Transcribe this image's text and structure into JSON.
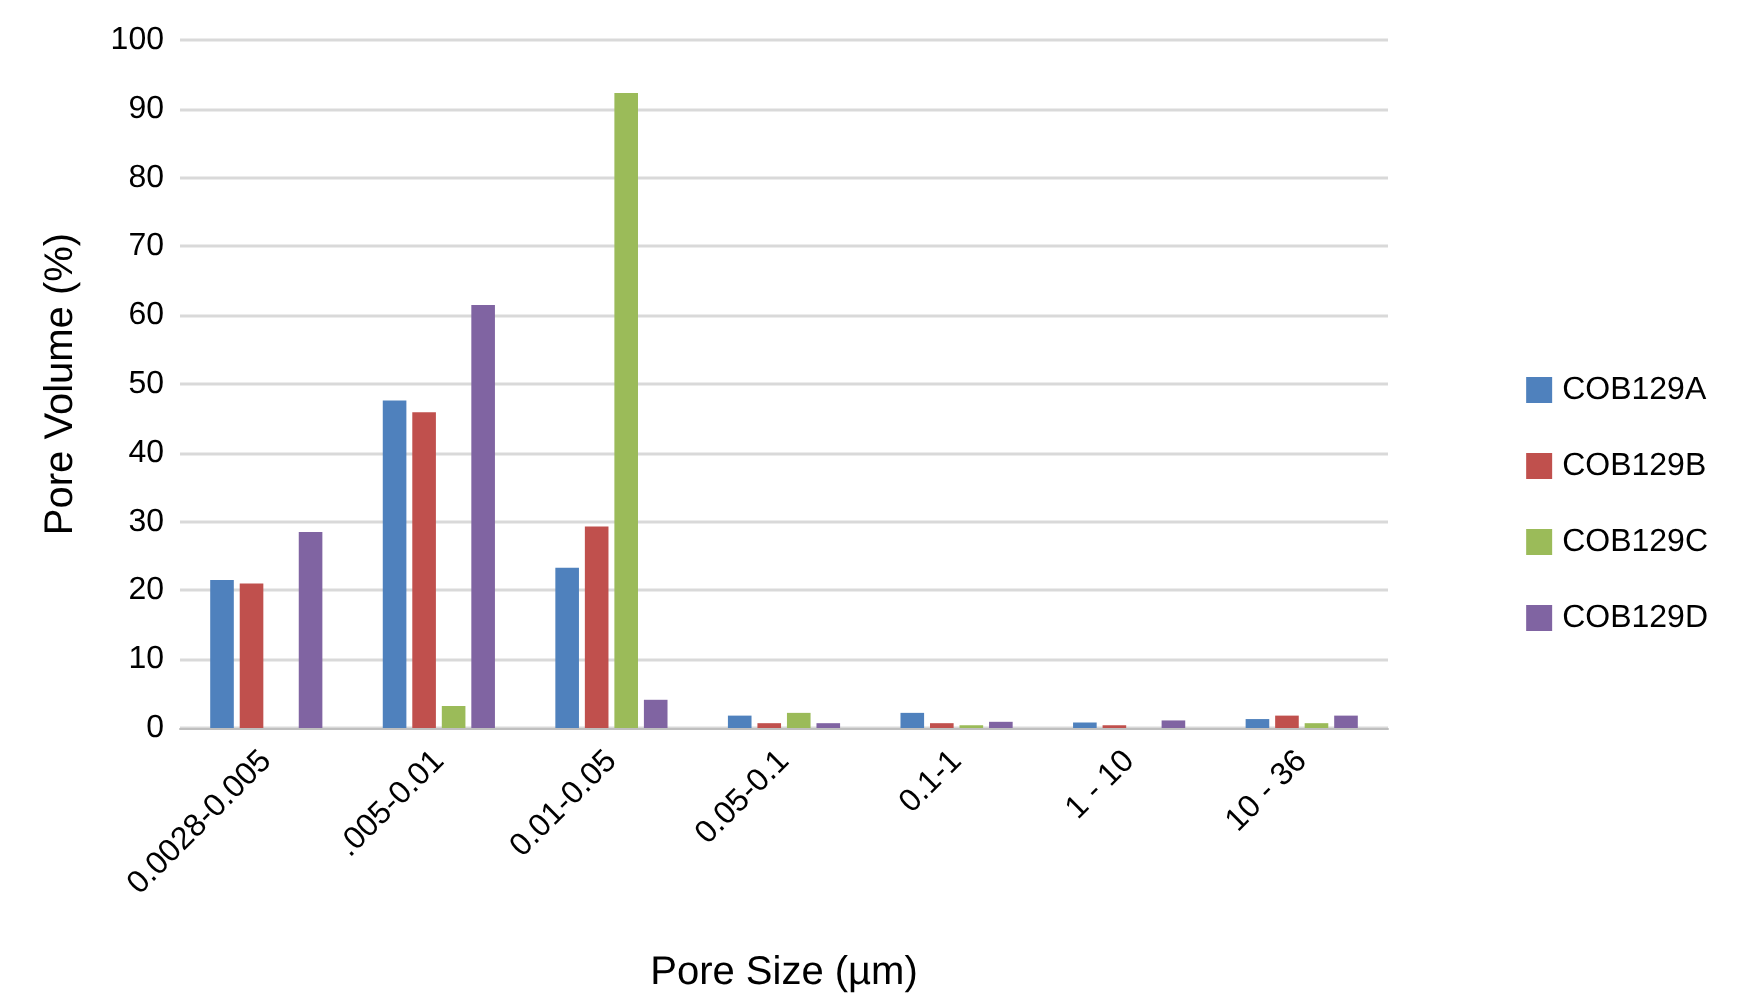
{
  "chart_data": {
    "type": "bar",
    "xlabel": "Pore Size (µm)",
    "ylabel": "Pore Volume (%)",
    "categories": [
      "0.0028-0.005",
      ".005-0.01",
      "0.01-0.05",
      "0.05-0.1",
      "0.1-1",
      "1 - 10",
      "10 - 36"
    ],
    "series": [
      {
        "name": "COB129A",
        "color": "#4f81bd",
        "values": [
          21.5,
          47.6,
          23.3,
          1.8,
          2.2,
          0.8,
          1.3
        ]
      },
      {
        "name": "COB129B",
        "color": "#c0504d",
        "values": [
          21,
          45.9,
          29.3,
          0.7,
          0.7,
          0.4,
          1.8
        ]
      },
      {
        "name": "COB129C",
        "color": "#9bbb59",
        "values": [
          0,
          3.2,
          92.3,
          2.2,
          0.4,
          0,
          0.7
        ]
      },
      {
        "name": "COB129D",
        "color": "#8064a2",
        "values": [
          28.5,
          61.5,
          4.1,
          0.7,
          0.9,
          1.1,
          1.8
        ]
      }
    ],
    "ylim": [
      0,
      100
    ],
    "yticks": [
      0,
      10,
      20,
      30,
      40,
      50,
      60,
      70,
      80,
      90,
      100
    ],
    "grid": "y",
    "legend": "right"
  }
}
